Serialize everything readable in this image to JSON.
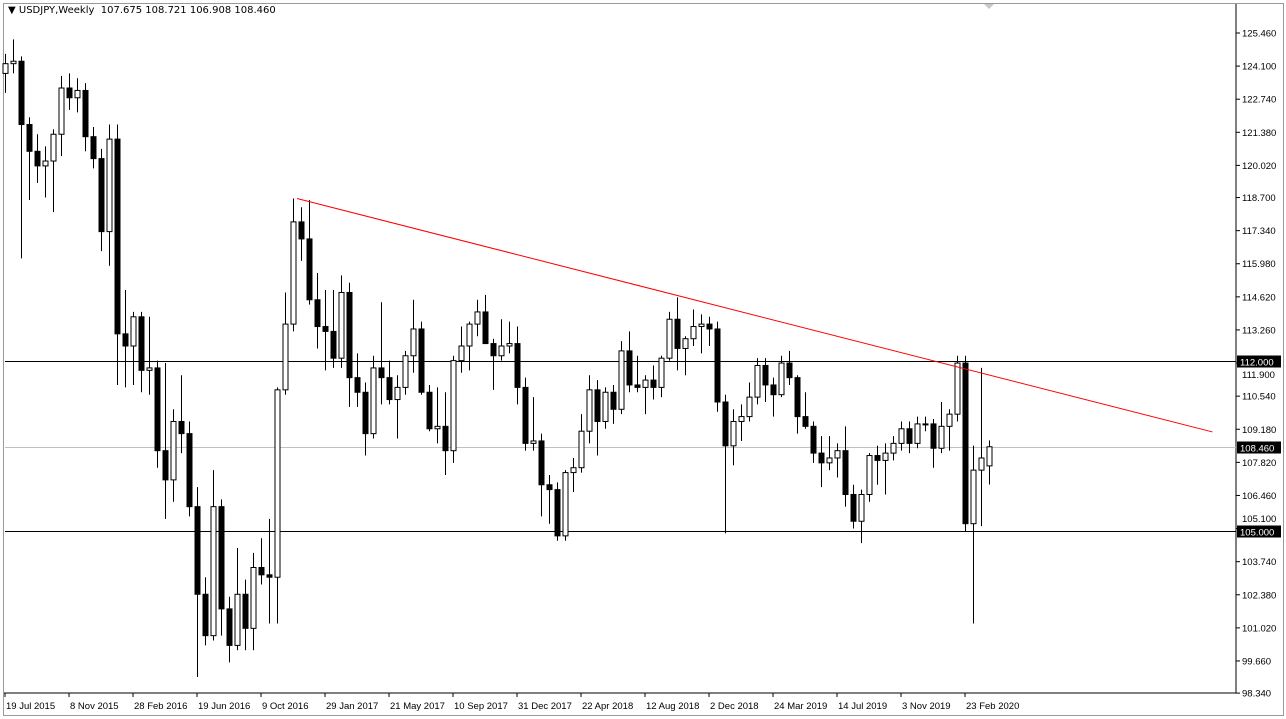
{
  "header": {
    "symbol": "USDJPY,Weekly",
    "ohlc_text": "107.675 108.721 106.908 108.460"
  },
  "chart_data": {
    "type": "candlestick",
    "title": "USDJPY,Weekly",
    "ylim": [
      98.34,
      126.1
    ],
    "xlim": [
      "2015-07-12",
      "2021-05-01"
    ],
    "grid": false,
    "y_ticks": [
      "125.460",
      "124.100",
      "122.740",
      "121.380",
      "120.020",
      "118.700",
      "117.340",
      "115.980",
      "114.620",
      "113.260",
      "111.900",
      "110.540",
      "109.180",
      "107.820",
      "106.460",
      "105.100",
      "103.740",
      "102.380",
      "101.020",
      "99.660",
      "98.340"
    ],
    "x_ticks": [
      [
        "2015-07-19",
        "19 Jul 2015"
      ],
      [
        "2015-11-08",
        "8 Nov 2015"
      ],
      [
        "2016-02-28",
        "28 Feb 2016"
      ],
      [
        "2016-06-19",
        "19 Jun 2016"
      ],
      [
        "2016-10-09",
        "9 Oct 2016"
      ],
      [
        "2017-01-29",
        "29 Jan 2017"
      ],
      [
        "2017-05-21",
        "21 May 2017"
      ],
      [
        "2017-09-10",
        "10 Sep 2017"
      ],
      [
        "2017-12-31",
        "31 Dec 2017"
      ],
      [
        "2018-04-22",
        "22 Apr 2018"
      ],
      [
        "2018-08-12",
        "12 Aug 2018"
      ],
      [
        "2018-12-02",
        "2 Dec 2018"
      ],
      [
        "2019-03-24",
        "24 Mar 2019"
      ],
      [
        "2019-07-14",
        "14 Jul 2019"
      ],
      [
        "2019-11-03",
        "3 Nov 2019"
      ],
      [
        "2020-02-23",
        "23 Feb 2020"
      ]
    ],
    "horizontal_lines": [
      {
        "value": 112.0,
        "label": "112.000",
        "color": "#000000"
      },
      {
        "value": 105.0,
        "label": "105.000",
        "color": "#000000"
      },
      {
        "value": 108.46,
        "label": "108.460",
        "color": "#c0c0c0"
      }
    ],
    "trendline": {
      "color": "#ff0000",
      "points": [
        [
          "2016-12-11",
          118.66
        ],
        [
          "2021-05-01",
          109.07
        ]
      ]
    },
    "colors": {
      "bull_body": "#ffffff",
      "bear_body": "#000000",
      "outline": "#000000"
    },
    "candles": [
      [
        "2015-07-19",
        123.8,
        124.6,
        123.0,
        124.2
      ],
      [
        "2015-08-02",
        124.2,
        125.2,
        123.8,
        124.3
      ],
      [
        "2015-08-16",
        124.3,
        124.5,
        116.2,
        121.7
      ],
      [
        "2015-08-30",
        121.7,
        122.0,
        118.6,
        120.6
      ],
      [
        "2015-09-13",
        120.6,
        121.3,
        119.3,
        120.0
      ],
      [
        "2015-09-27",
        120.0,
        120.8,
        118.7,
        120.2
      ],
      [
        "2015-10-11",
        120.2,
        121.5,
        118.1,
        121.3
      ],
      [
        "2015-10-25",
        121.3,
        123.7,
        120.4,
        123.2
      ],
      [
        "2015-11-08",
        123.2,
        123.8,
        122.3,
        122.8
      ],
      [
        "2015-11-22",
        122.8,
        123.6,
        122.2,
        123.1
      ],
      [
        "2015-12-06",
        123.1,
        123.4,
        120.6,
        121.2
      ],
      [
        "2015-12-20",
        121.2,
        121.6,
        119.9,
        120.3
      ],
      [
        "2016-01-03",
        120.3,
        120.7,
        116.5,
        117.3
      ],
      [
        "2016-01-17",
        117.3,
        121.7,
        115.9,
        121.1
      ],
      [
        "2016-01-31",
        121.1,
        121.7,
        111.0,
        113.1
      ],
      [
        "2016-02-14",
        113.1,
        114.9,
        110.9,
        112.6
      ],
      [
        "2016-02-28",
        112.6,
        114.0,
        111.0,
        113.8
      ],
      [
        "2016-03-13",
        113.8,
        114.0,
        110.7,
        111.6
      ],
      [
        "2016-03-27",
        111.6,
        113.8,
        110.6,
        111.7
      ],
      [
        "2016-04-10",
        111.7,
        112.0,
        107.6,
        108.3
      ],
      [
        "2016-04-24",
        108.3,
        111.9,
        105.5,
        107.1
      ],
      [
        "2016-05-08",
        107.1,
        110.0,
        106.2,
        109.5
      ],
      [
        "2016-05-22",
        109.5,
        111.4,
        108.2,
        109.0
      ],
      [
        "2016-06-05",
        109.0,
        109.5,
        105.6,
        106.0
      ],
      [
        "2016-06-19",
        106.0,
        106.8,
        99.0,
        102.4
      ],
      [
        "2016-07-03",
        102.4,
        103.1,
        100.3,
        100.7
      ],
      [
        "2016-07-17",
        100.7,
        107.5,
        100.5,
        106.0
      ],
      [
        "2016-07-31",
        106.0,
        106.3,
        100.7,
        101.8
      ],
      [
        "2016-08-14",
        101.8,
        102.3,
        99.6,
        100.3
      ],
      [
        "2016-08-28",
        100.3,
        104.3,
        100.1,
        102.4
      ],
      [
        "2016-09-11",
        102.4,
        103.0,
        100.1,
        101.0
      ],
      [
        "2016-09-25",
        101.0,
        104.1,
        100.1,
        103.5
      ],
      [
        "2016-10-09",
        103.5,
        104.7,
        102.8,
        103.2
      ],
      [
        "2016-10-23",
        103.2,
        105.5,
        101.2,
        103.1
      ],
      [
        "2016-11-06",
        103.1,
        110.9,
        101.2,
        110.8
      ],
      [
        "2016-11-20",
        110.8,
        114.8,
        110.6,
        113.5
      ],
      [
        "2016-12-04",
        113.5,
        118.66,
        113.2,
        117.7
      ],
      [
        "2016-12-18",
        117.7,
        118.3,
        116.1,
        117.0
      ],
      [
        "2017-01-01",
        117.0,
        118.6,
        114.3,
        114.5
      ],
      [
        "2017-01-15",
        114.5,
        115.6,
        112.5,
        113.4
      ],
      [
        "2017-01-29",
        113.4,
        114.9,
        111.6,
        113.2
      ],
      [
        "2017-02-12",
        113.2,
        114.9,
        111.7,
        112.1
      ],
      [
        "2017-02-26",
        112.1,
        115.5,
        111.7,
        114.8
      ],
      [
        "2017-03-12",
        114.8,
        115.2,
        110.1,
        111.3
      ],
      [
        "2017-03-26",
        111.3,
        112.3,
        110.1,
        110.7
      ],
      [
        "2017-04-09",
        110.7,
        111.1,
        108.1,
        109.0
      ],
      [
        "2017-04-23",
        109.0,
        112.2,
        108.8,
        111.7
      ],
      [
        "2017-05-07",
        111.7,
        114.4,
        110.2,
        111.3
      ],
      [
        "2017-05-21",
        111.3,
        112.0,
        110.2,
        110.4
      ],
      [
        "2017-06-04",
        110.4,
        111.4,
        108.8,
        110.9
      ],
      [
        "2017-06-18",
        110.9,
        112.4,
        110.6,
        112.2
      ],
      [
        "2017-07-02",
        112.2,
        114.5,
        111.5,
        113.3
      ],
      [
        "2017-07-16",
        113.3,
        113.6,
        110.6,
        110.7
      ],
      [
        "2017-07-30",
        110.7,
        111.0,
        109.1,
        109.2
      ],
      [
        "2017-08-13",
        109.2,
        110.9,
        108.6,
        109.3
      ],
      [
        "2017-08-27",
        109.3,
        110.7,
        107.3,
        108.3
      ],
      [
        "2017-09-10",
        108.3,
        112.2,
        107.8,
        112.0
      ],
      [
        "2017-09-24",
        112.0,
        113.4,
        111.5,
        112.6
      ],
      [
        "2017-10-08",
        112.6,
        113.6,
        111.6,
        113.5
      ],
      [
        "2017-10-22",
        113.5,
        114.5,
        113.0,
        114.0
      ],
      [
        "2017-11-05",
        114.0,
        114.7,
        112.7,
        112.7
      ],
      [
        "2017-11-19",
        112.7,
        112.9,
        110.8,
        112.2
      ],
      [
        "2017-12-03",
        112.2,
        113.7,
        112.0,
        112.6
      ],
      [
        "2017-12-17",
        112.6,
        113.6,
        112.3,
        112.7
      ],
      [
        "2017-12-31",
        112.7,
        113.4,
        110.2,
        110.9
      ],
      [
        "2018-01-14",
        110.9,
        111.3,
        108.3,
        108.6
      ],
      [
        "2018-01-28",
        108.6,
        110.5,
        108.3,
        108.7
      ],
      [
        "2018-02-11",
        108.7,
        109.0,
        105.6,
        106.9
      ],
      [
        "2018-02-25",
        106.9,
        107.3,
        105.3,
        106.7
      ],
      [
        "2018-03-11",
        106.7,
        107.0,
        104.6,
        104.8
      ],
      [
        "2018-03-25",
        104.8,
        107.5,
        104.6,
        107.4
      ],
      [
        "2018-04-08",
        107.4,
        108.0,
        106.6,
        107.6
      ],
      [
        "2018-04-22",
        107.6,
        109.8,
        107.4,
        109.1
      ],
      [
        "2018-05-06",
        109.1,
        111.4,
        108.6,
        110.8
      ],
      [
        "2018-05-20",
        110.8,
        111.2,
        108.1,
        109.5
      ],
      [
        "2018-06-03",
        109.5,
        110.9,
        109.2,
        110.7
      ],
      [
        "2018-06-17",
        110.7,
        111.0,
        109.4,
        110.0
      ],
      [
        "2018-07-01",
        110.0,
        112.8,
        109.8,
        112.4
      ],
      [
        "2018-07-15",
        112.4,
        113.2,
        110.7,
        111.0
      ],
      [
        "2018-07-29",
        111.0,
        112.2,
        110.7,
        110.9
      ],
      [
        "2018-08-12",
        110.9,
        111.4,
        109.8,
        111.2
      ],
      [
        "2018-08-26",
        111.2,
        111.8,
        110.4,
        110.9
      ],
      [
        "2018-09-09",
        110.9,
        112.2,
        110.5,
        112.1
      ],
      [
        "2018-09-23",
        112.1,
        114.0,
        112.0,
        113.7
      ],
      [
        "2018-10-07",
        113.7,
        114.6,
        111.6,
        112.5
      ],
      [
        "2018-10-21",
        112.5,
        113.0,
        111.4,
        112.9
      ],
      [
        "2018-11-04",
        112.9,
        114.1,
        112.6,
        113.4
      ],
      [
        "2018-11-18",
        113.4,
        113.9,
        112.3,
        113.5
      ],
      [
        "2018-12-02",
        113.5,
        113.8,
        112.6,
        113.3
      ],
      [
        "2018-12-16",
        113.3,
        113.6,
        109.9,
        110.3
      ],
      [
        "2018-12-30",
        110.3,
        110.6,
        104.9,
        108.5
      ],
      [
        "2019-01-13",
        108.5,
        110.0,
        107.7,
        109.5
      ],
      [
        "2019-01-27",
        109.5,
        110.2,
        108.7,
        109.7
      ],
      [
        "2019-02-10",
        109.7,
        111.1,
        109.5,
        110.5
      ],
      [
        "2019-02-24",
        110.5,
        112.1,
        110.2,
        111.8
      ],
      [
        "2019-03-10",
        111.8,
        112.1,
        110.3,
        111.0
      ],
      [
        "2019-03-24",
        111.0,
        111.3,
        109.7,
        110.6
      ],
      [
        "2019-04-07",
        110.6,
        112.2,
        110.5,
        111.9
      ],
      [
        "2019-04-21",
        111.9,
        112.4,
        111.0,
        111.3
      ],
      [
        "2019-05-05",
        111.3,
        111.4,
        109.0,
        109.7
      ],
      [
        "2019-05-19",
        109.7,
        110.7,
        109.2,
        109.3
      ],
      [
        "2019-06-02",
        109.3,
        109.5,
        107.8,
        108.2
      ],
      [
        "2019-06-16",
        108.2,
        108.9,
        106.8,
        107.8
      ],
      [
        "2019-06-30",
        107.8,
        108.9,
        107.5,
        108.0
      ],
      [
        "2019-07-14",
        108.0,
        108.6,
        107.2,
        108.3
      ],
      [
        "2019-07-28",
        108.3,
        109.3,
        106.0,
        106.5
      ],
      [
        "2019-08-11",
        106.5,
        106.9,
        105.1,
        105.4
      ],
      [
        "2019-08-25",
        105.4,
        106.7,
        104.5,
        106.5
      ],
      [
        "2019-09-08",
        106.5,
        108.2,
        106.2,
        108.1
      ],
      [
        "2019-09-22",
        108.1,
        108.5,
        106.9,
        107.9
      ],
      [
        "2019-10-06",
        107.9,
        108.6,
        106.5,
        108.2
      ],
      [
        "2019-10-20",
        108.2,
        108.9,
        107.9,
        108.6
      ],
      [
        "2019-11-03",
        108.6,
        109.5,
        108.3,
        109.2
      ],
      [
        "2019-11-17",
        109.2,
        109.5,
        108.2,
        108.6
      ],
      [
        "2019-12-01",
        108.6,
        109.7,
        108.4,
        109.4
      ],
      [
        "2019-12-15",
        109.4,
        109.7,
        109.1,
        109.4
      ],
      [
        "2019-12-29",
        109.4,
        109.6,
        107.6,
        108.4
      ],
      [
        "2020-01-12",
        108.4,
        110.3,
        108.2,
        109.3
      ],
      [
        "2020-01-26",
        109.3,
        110.0,
        108.3,
        109.8
      ],
      [
        "2020-02-09",
        109.8,
        112.2,
        109.5,
        111.9
      ],
      [
        "2020-02-23",
        111.9,
        112.2,
        105.0,
        105.3
      ],
      [
        "2020-03-08",
        105.3,
        108.5,
        101.2,
        107.5
      ],
      [
        "2020-03-22",
        107.5,
        111.7,
        105.2,
        108.0
      ],
      [
        "2020-04-05",
        107.675,
        108.721,
        106.908,
        108.46
      ]
    ]
  }
}
